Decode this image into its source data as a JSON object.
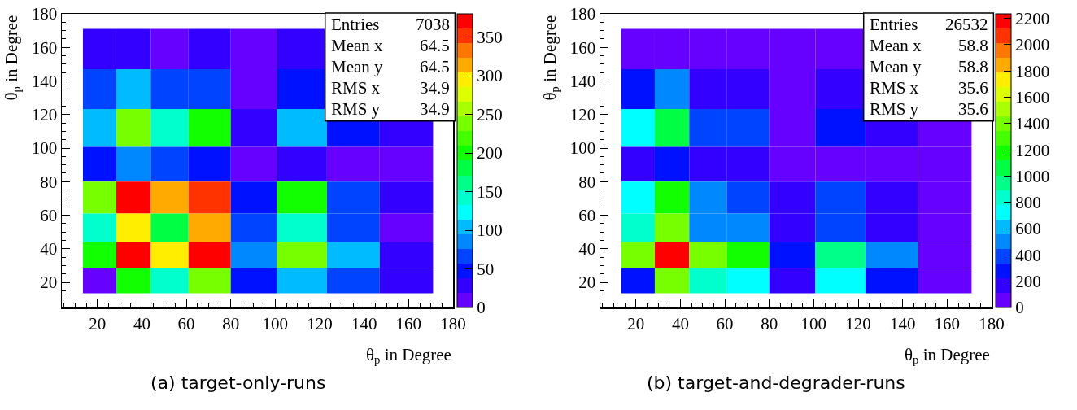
{
  "chart_data": [
    {
      "type": "heatmap",
      "title": "(a) target-only-runs",
      "xlabel": "θ$_{p}$ in Degree",
      "ylabel": "θ$_{p}$ in Degree",
      "x": [
        21,
        36,
        52,
        70,
        90,
        111.5,
        135,
        159
      ],
      "y": [
        159,
        135,
        111.5,
        90,
        70,
        52,
        36,
        21
      ],
      "xlim": [
        4,
        180
      ],
      "ylim": [
        5,
        180
      ],
      "xticks": [
        20,
        40,
        60,
        80,
        100,
        120,
        140,
        160,
        180
      ],
      "yticks": [
        20,
        40,
        60,
        80,
        100,
        120,
        140,
        160,
        180
      ],
      "cells": [
        [
          28,
          28,
          10,
          28,
          10,
          28,
          null,
          null
        ],
        [
          66,
          105,
          66,
          66,
          10,
          48,
          null,
          null
        ],
        [
          105,
          238,
          143,
          200,
          28,
          105,
          48,
          28
        ],
        [
          48,
          86,
          66,
          48,
          10,
          28,
          10,
          10
        ],
        [
          238,
          371,
          314,
          352,
          48,
          200,
          66,
          28
        ],
        [
          143,
          295,
          181,
          314,
          66,
          143,
          66,
          10
        ],
        [
          200,
          371,
          295,
          371,
          86,
          238,
          105,
          28
        ],
        [
          10,
          200,
          143,
          238,
          48,
          105,
          66,
          28
        ]
      ],
      "clim": [
        0,
        380
      ],
      "cticks": [
        0,
        50,
        100,
        150,
        200,
        250,
        300,
        350
      ],
      "annotations": [
        "Entries 7038",
        "Mean x 64.5",
        "Mean y 64.5",
        "RMS x 34.9",
        "RMS y 34.9"
      ],
      "grid": false
    },
    {
      "type": "heatmap",
      "title": "(b) target-and-degrader-runs",
      "xlabel": "θ$_{p}$ in Degree",
      "ylabel": "θ$_{p}$ in Degree",
      "x": [
        21,
        36,
        52,
        70,
        90,
        111.5,
        135,
        159
      ],
      "y": [
        159,
        135,
        111.5,
        90,
        70,
        52,
        36,
        21
      ],
      "xlim": [
        4,
        180
      ],
      "ylim": [
        5,
        180
      ],
      "xticks": [
        20,
        40,
        60,
        80,
        100,
        120,
        140,
        160,
        180
      ],
      "yticks": [
        20,
        40,
        60,
        80,
        100,
        120,
        140,
        160,
        180
      ],
      "cells": [
        [
          56,
          56,
          56,
          56,
          56,
          56,
          null,
          null
        ],
        [
          279,
          503,
          168,
          168,
          56,
          168,
          null,
          null
        ],
        [
          726,
          1061,
          391,
          391,
          56,
          279,
          168,
          56
        ],
        [
          168,
          279,
          168,
          168,
          56,
          56,
          56,
          56
        ],
        [
          726,
          1173,
          503,
          391,
          168,
          391,
          168,
          56
        ],
        [
          838,
          1397,
          503,
          503,
          168,
          391,
          168,
          56
        ],
        [
          1397,
          2179,
          1397,
          1173,
          279,
          950,
          503,
          56
        ],
        [
          279,
          1397,
          838,
          726,
          168,
          726,
          279,
          56
        ]
      ],
      "clim": [
        0,
        2235
      ],
      "cticks": [
        0,
        200,
        400,
        600,
        800,
        1000,
        1200,
        1400,
        1600,
        1800,
        2000,
        2200
      ],
      "annotations": [
        "Entries 26532",
        "Mean x 58.8",
        "Mean y 58.8",
        "RMS x 35.6",
        "RMS y 35.6"
      ],
      "grid": false
    }
  ]
}
